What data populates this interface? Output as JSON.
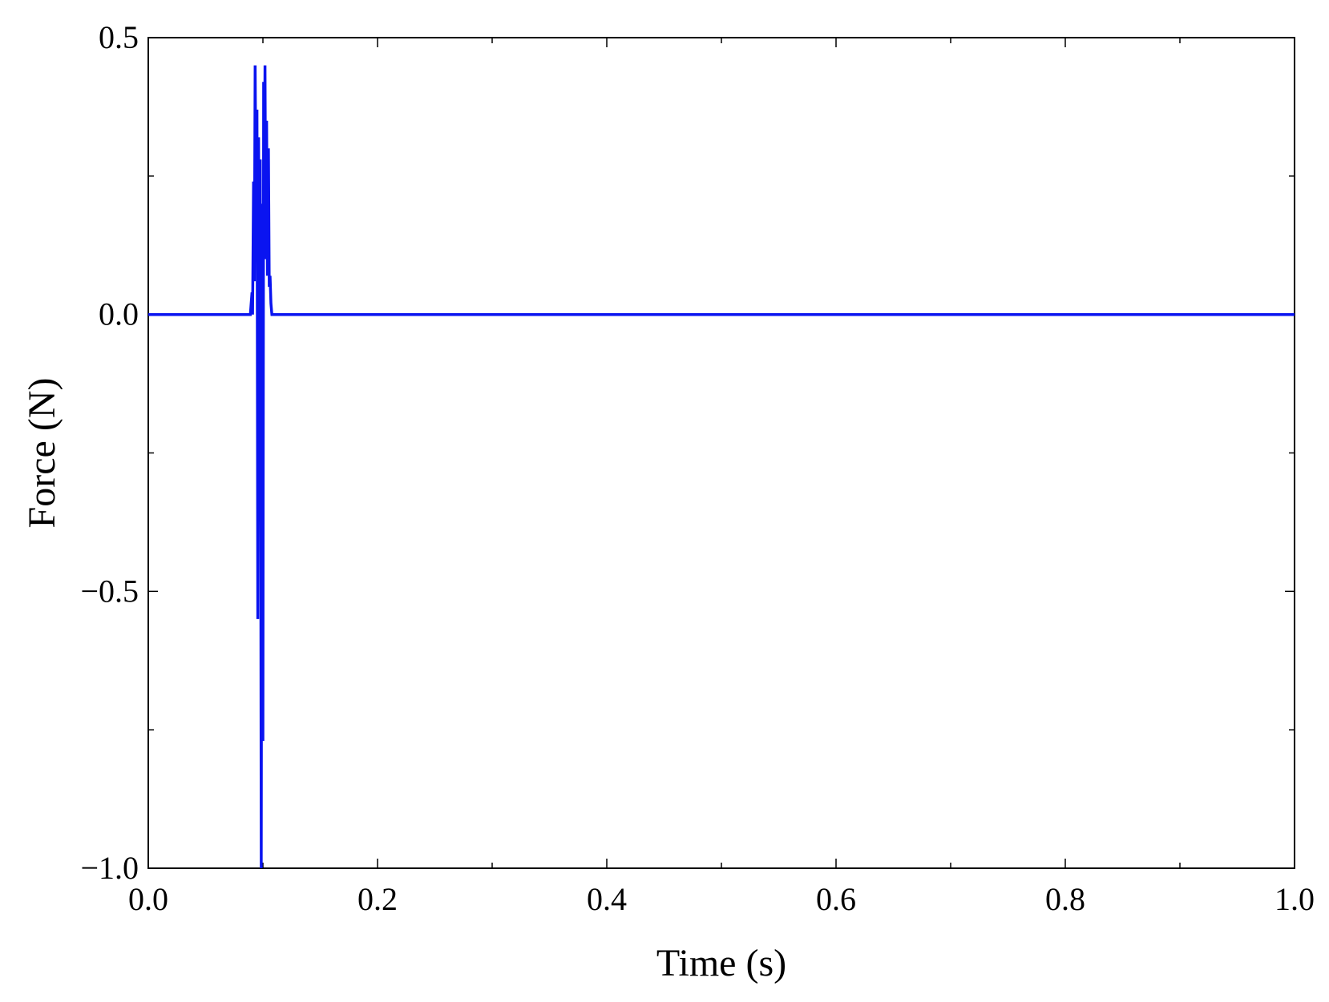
{
  "chart_data": {
    "type": "line",
    "xlabel": "Time (s)",
    "ylabel": "Force (N)",
    "xlim": [
      0.0,
      1.0
    ],
    "ylim": [
      -1.0,
      0.5
    ],
    "x_ticks": [
      0.0,
      0.2,
      0.4,
      0.6,
      0.8,
      1.0
    ],
    "x_tick_labels": [
      "0.0",
      "0.2",
      "0.4",
      "0.6",
      "0.8",
      "1.0"
    ],
    "x_minor_ticks": [
      0.1,
      0.3,
      0.5,
      0.7,
      0.9
    ],
    "y_ticks": [
      0.5,
      0.0,
      -0.5,
      -1.0
    ],
    "y_tick_labels": [
      "0.5",
      "0.0",
      "−0.5",
      "−1.0"
    ],
    "y_minor_ticks": [
      0.25,
      -0.25,
      -0.75
    ],
    "grid": false,
    "series": [
      {
        "color": "#0a14f0",
        "x": [
          0.0,
          0.088,
          0.089,
          0.0905,
          0.091,
          0.0918,
          0.0925,
          0.0932,
          0.094,
          0.0948,
          0.0955,
          0.0962,
          0.097,
          0.0977,
          0.0985,
          0.0992,
          0.1,
          0.1006,
          0.1012,
          0.1018,
          0.1025,
          0.1032,
          0.104,
          0.1048,
          0.1055,
          0.1062,
          0.107,
          0.1078,
          0.1085,
          0.1092,
          0.11,
          0.111,
          1.0
        ],
        "y": [
          0.0,
          0.0,
          0.0,
          0.04,
          0.0,
          0.24,
          0.06,
          0.45,
          0.2,
          0.37,
          -0.55,
          0.32,
          -0.15,
          0.28,
          -1.0,
          0.2,
          -0.77,
          0.42,
          0.22,
          0.45,
          0.1,
          0.35,
          0.07,
          0.3,
          0.05,
          0.07,
          0.02,
          0.0,
          0.0,
          0.0,
          0.0,
          0.0,
          0.0
        ]
      }
    ]
  }
}
